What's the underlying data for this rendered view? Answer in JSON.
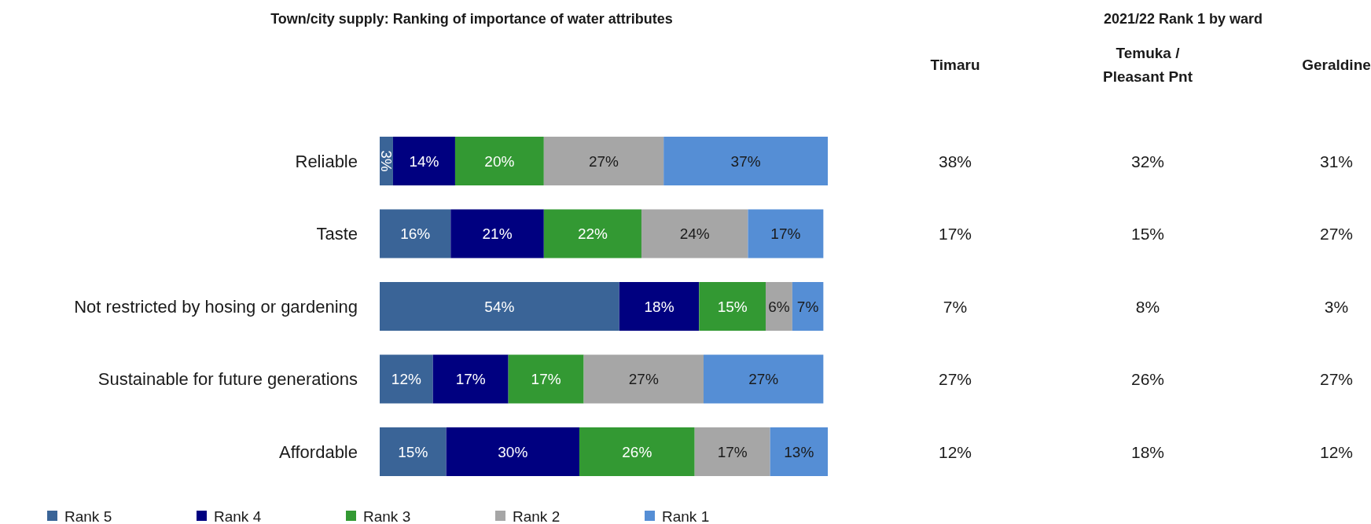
{
  "chart_data": [
    {
      "type": "bar",
      "title": "Town/city supply: Ranking of importance of water attributes",
      "orientation": "horizontal",
      "stacked": true,
      "legend": "bottom",
      "categories": [
        "Reliable",
        "Taste",
        "Not restricted by hosing or gardening",
        "Sustainable for future generations",
        "Affordable"
      ],
      "series": [
        {
          "name": "Rank 5",
          "color": "#3a6497",
          "values": [
            3,
            16,
            54,
            12,
            15
          ],
          "value_labels": [
            "3%",
            "16%",
            "54%",
            "12%",
            "15%"
          ]
        },
        {
          "name": "Rank 4",
          "color": "#000080",
          "values": [
            14,
            21,
            18,
            17,
            30
          ],
          "value_labels": [
            "14%",
            "21%",
            "18%",
            "17%",
            "30%"
          ]
        },
        {
          "name": "Rank 3",
          "color": "#339933",
          "values": [
            20,
            22,
            15,
            17,
            26
          ],
          "value_labels": [
            "20%",
            "22%",
            "15%",
            "17%",
            "26%"
          ]
        },
        {
          "name": "Rank 2",
          "color": "#a6a6a6",
          "values": [
            27,
            24,
            6,
            27,
            17
          ],
          "value_labels": [
            "27%",
            "24%",
            "6%",
            "27%",
            "17%"
          ]
        },
        {
          "name": "Rank 1",
          "color": "#558ed5",
          "values": [
            37,
            17,
            7,
            27,
            13
          ],
          "value_labels": [
            "37%",
            "17%",
            "7%",
            "27%",
            "13%"
          ]
        }
      ]
    },
    {
      "type": "other",
      "title": "2021/22 Rank 1 by ward",
      "categories": [
        "Timaru",
        "Temuka / Pleasant Pnt",
        "Geraldine"
      ],
      "y_categories": [
        null,
        null,
        null,
        null,
        null
      ],
      "cell_labels": [
        [
          "38%",
          "32%",
          "31%"
        ],
        [
          "17%",
          "15%",
          "27%"
        ],
        [
          "7%",
          "8%",
          "3%"
        ],
        [
          "27%",
          "26%",
          "27%"
        ],
        [
          "12%",
          "18%",
          "12%"
        ]
      ]
    }
  ]
}
